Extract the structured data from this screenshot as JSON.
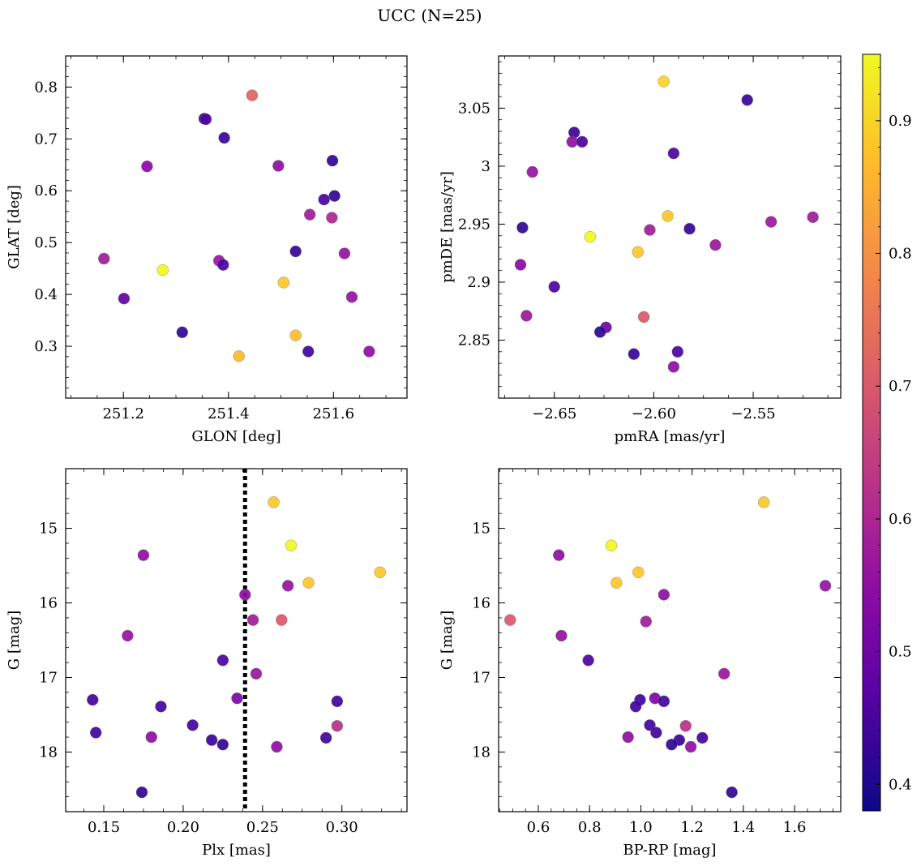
{
  "title": "UCC (N=25)",
  "colorbar": {
    "cmap": "plasma",
    "vmin": 0.38,
    "vmax": 0.95,
    "ticks": [
      0.4,
      0.5,
      0.6,
      0.7,
      0.8,
      0.9
    ]
  },
  "chart_data": [
    {
      "type": "scatter",
      "id": "glon-glat",
      "xlabel": "GLON [deg]",
      "ylabel": "GLAT [deg]",
      "xlim": [
        251.09,
        251.74
      ],
      "ylim": [
        0.2,
        0.86
      ],
      "xticks": [
        251.2,
        251.4,
        251.6
      ],
      "yticks": [
        0.3,
        0.4,
        0.5,
        0.6,
        0.7,
        0.8
      ],
      "points": [
        {
          "x": 251.445,
          "y": 0.784,
          "c": 0.72
        },
        {
          "x": 251.354,
          "y": 0.739,
          "c": 0.41
        },
        {
          "x": 251.357,
          "y": 0.738,
          "c": 0.46
        },
        {
          "x": 251.392,
          "y": 0.702,
          "c": 0.43
        },
        {
          "x": 251.598,
          "y": 0.658,
          "c": 0.42
        },
        {
          "x": 251.245,
          "y": 0.647,
          "c": 0.54
        },
        {
          "x": 251.495,
          "y": 0.648,
          "c": 0.55
        },
        {
          "x": 251.602,
          "y": 0.59,
          "c": 0.42
        },
        {
          "x": 251.582,
          "y": 0.583,
          "c": 0.45
        },
        {
          "x": 251.555,
          "y": 0.554,
          "c": 0.58
        },
        {
          "x": 251.597,
          "y": 0.548,
          "c": 0.6
        },
        {
          "x": 251.528,
          "y": 0.483,
          "c": 0.43
        },
        {
          "x": 251.621,
          "y": 0.479,
          "c": 0.56
        },
        {
          "x": 251.163,
          "y": 0.469,
          "c": 0.58
        },
        {
          "x": 251.382,
          "y": 0.465,
          "c": 0.57
        },
        {
          "x": 251.39,
          "y": 0.457,
          "c": 0.45
        },
        {
          "x": 251.275,
          "y": 0.447,
          "c": 0.95
        },
        {
          "x": 251.505,
          "y": 0.423,
          "c": 0.88
        },
        {
          "x": 251.635,
          "y": 0.395,
          "c": 0.56
        },
        {
          "x": 251.201,
          "y": 0.392,
          "c": 0.48
        },
        {
          "x": 251.312,
          "y": 0.327,
          "c": 0.42
        },
        {
          "x": 251.528,
          "y": 0.321,
          "c": 0.87
        },
        {
          "x": 251.552,
          "y": 0.29,
          "c": 0.44
        },
        {
          "x": 251.668,
          "y": 0.29,
          "c": 0.55
        },
        {
          "x": 251.42,
          "y": 0.281,
          "c": 0.86
        }
      ]
    },
    {
      "type": "scatter",
      "id": "pmra-pmde",
      "xlabel": "pmRA [mas/yr]",
      "ylabel": "pmDE [mas/yr]",
      "xlim": [
        -2.678,
        -2.506
      ],
      "ylim": [
        2.8,
        3.095
      ],
      "xticks": [
        -2.65,
        -2.6,
        -2.55
      ],
      "xtick_labels": [
        "−2.65",
        "−2.60",
        "−2.55"
      ],
      "yticks": [
        2.85,
        2.9,
        2.95,
        3.0,
        3.05
      ],
      "points": [
        {
          "x": -2.595,
          "y": 3.073,
          "c": 0.9
        },
        {
          "x": -2.553,
          "y": 3.057,
          "c": 0.43
        },
        {
          "x": -2.64,
          "y": 3.029,
          "c": 0.43
        },
        {
          "x": -2.641,
          "y": 3.021,
          "c": 0.55
        },
        {
          "x": -2.636,
          "y": 3.021,
          "c": 0.45
        },
        {
          "x": -2.59,
          "y": 3.011,
          "c": 0.45
        },
        {
          "x": -2.661,
          "y": 2.995,
          "c": 0.56
        },
        {
          "x": -2.593,
          "y": 2.957,
          "c": 0.88
        },
        {
          "x": -2.52,
          "y": 2.956,
          "c": 0.58
        },
        {
          "x": -2.541,
          "y": 2.952,
          "c": 0.57
        },
        {
          "x": -2.666,
          "y": 2.947,
          "c": 0.42
        },
        {
          "x": -2.582,
          "y": 2.946,
          "c": 0.42
        },
        {
          "x": -2.602,
          "y": 2.945,
          "c": 0.58
        },
        {
          "x": -2.632,
          "y": 2.939,
          "c": 0.95
        },
        {
          "x": -2.569,
          "y": 2.932,
          "c": 0.57
        },
        {
          "x": -2.608,
          "y": 2.926,
          "c": 0.88
        },
        {
          "x": -2.667,
          "y": 2.915,
          "c": 0.54
        },
        {
          "x": -2.65,
          "y": 2.896,
          "c": 0.45
        },
        {
          "x": -2.664,
          "y": 2.871,
          "c": 0.57
        },
        {
          "x": -2.605,
          "y": 2.87,
          "c": 0.7
        },
        {
          "x": -2.624,
          "y": 2.861,
          "c": 0.5
        },
        {
          "x": -2.627,
          "y": 2.857,
          "c": 0.42
        },
        {
          "x": -2.588,
          "y": 2.84,
          "c": 0.45
        },
        {
          "x": -2.61,
          "y": 2.838,
          "c": 0.43
        },
        {
          "x": -2.59,
          "y": 2.827,
          "c": 0.55
        }
      ]
    },
    {
      "type": "scatter",
      "id": "plx-g",
      "xlabel": "Plx [mas]",
      "ylabel": "G [mag]",
      "xlim": [
        0.126,
        0.341
      ],
      "ylim": [
        18.8,
        14.2
      ],
      "y_inverted": true,
      "xticks": [
        0.15,
        0.2,
        0.25,
        0.3
      ],
      "xtick_labels": [
        "0.15",
        "0.20",
        "0.25",
        "0.30"
      ],
      "yticks": [
        15,
        16,
        17,
        18
      ],
      "vline": {
        "x": 0.239,
        "style": "dotted"
      },
      "points": [
        {
          "x": 0.257,
          "y": 14.65,
          "c": 0.88
        },
        {
          "x": 0.268,
          "y": 15.23,
          "c": 0.95
        },
        {
          "x": 0.175,
          "y": 15.36,
          "c": 0.55
        },
        {
          "x": 0.324,
          "y": 15.59,
          "c": 0.88
        },
        {
          "x": 0.279,
          "y": 15.73,
          "c": 0.88
        },
        {
          "x": 0.266,
          "y": 15.77,
          "c": 0.56
        },
        {
          "x": 0.239,
          "y": 15.89,
          "c": 0.55
        },
        {
          "x": 0.244,
          "y": 16.23,
          "c": 0.58
        },
        {
          "x": 0.262,
          "y": 16.23,
          "c": 0.7
        },
        {
          "x": 0.165,
          "y": 16.44,
          "c": 0.56
        },
        {
          "x": 0.225,
          "y": 16.77,
          "c": 0.45
        },
        {
          "x": 0.246,
          "y": 16.95,
          "c": 0.57
        },
        {
          "x": 0.234,
          "y": 17.28,
          "c": 0.52
        },
        {
          "x": 0.143,
          "y": 17.3,
          "c": 0.44
        },
        {
          "x": 0.297,
          "y": 17.32,
          "c": 0.44
        },
        {
          "x": 0.186,
          "y": 17.39,
          "c": 0.44
        },
        {
          "x": 0.206,
          "y": 17.64,
          "c": 0.44
        },
        {
          "x": 0.297,
          "y": 17.65,
          "c": 0.62
        },
        {
          "x": 0.145,
          "y": 17.74,
          "c": 0.44
        },
        {
          "x": 0.18,
          "y": 17.8,
          "c": 0.55
        },
        {
          "x": 0.29,
          "y": 17.81,
          "c": 0.44
        },
        {
          "x": 0.218,
          "y": 17.84,
          "c": 0.43
        },
        {
          "x": 0.225,
          "y": 17.9,
          "c": 0.42
        },
        {
          "x": 0.259,
          "y": 17.93,
          "c": 0.55
        },
        {
          "x": 0.174,
          "y": 18.54,
          "c": 0.42
        }
      ]
    },
    {
      "type": "scatter",
      "id": "bprp-g",
      "xlabel": "BP-RP [mag]",
      "ylabel": "G [mag]",
      "xlim": [
        0.445,
        1.78
      ],
      "ylim": [
        18.8,
        14.2
      ],
      "y_inverted": true,
      "xticks": [
        0.6,
        0.8,
        1.0,
        1.2,
        1.4,
        1.6
      ],
      "xtick_labels": [
        "0.6",
        "0.8",
        "1.0",
        "1.2",
        "1.4",
        "1.6"
      ],
      "yticks": [
        15,
        16,
        17,
        18
      ],
      "points": [
        {
          "x": 1.48,
          "y": 14.65,
          "c": 0.88
        },
        {
          "x": 0.885,
          "y": 15.23,
          "c": 0.95
        },
        {
          "x": 0.68,
          "y": 15.36,
          "c": 0.55
        },
        {
          "x": 0.99,
          "y": 15.59,
          "c": 0.88
        },
        {
          "x": 0.905,
          "y": 15.73,
          "c": 0.88
        },
        {
          "x": 1.72,
          "y": 15.77,
          "c": 0.56
        },
        {
          "x": 1.09,
          "y": 15.89,
          "c": 0.55
        },
        {
          "x": 0.49,
          "y": 16.23,
          "c": 0.7
        },
        {
          "x": 1.02,
          "y": 16.25,
          "c": 0.58
        },
        {
          "x": 0.69,
          "y": 16.44,
          "c": 0.56
        },
        {
          "x": 0.795,
          "y": 16.77,
          "c": 0.45
        },
        {
          "x": 1.325,
          "y": 16.95,
          "c": 0.57
        },
        {
          "x": 1.055,
          "y": 17.28,
          "c": 0.52
        },
        {
          "x": 0.997,
          "y": 17.3,
          "c": 0.44
        },
        {
          "x": 1.09,
          "y": 17.32,
          "c": 0.44
        },
        {
          "x": 0.98,
          "y": 17.39,
          "c": 0.44
        },
        {
          "x": 1.035,
          "y": 17.64,
          "c": 0.44
        },
        {
          "x": 1.175,
          "y": 17.65,
          "c": 0.62
        },
        {
          "x": 1.06,
          "y": 17.74,
          "c": 0.44
        },
        {
          "x": 0.95,
          "y": 17.8,
          "c": 0.55
        },
        {
          "x": 1.24,
          "y": 17.81,
          "c": 0.44
        },
        {
          "x": 1.15,
          "y": 17.84,
          "c": 0.43
        },
        {
          "x": 1.12,
          "y": 17.9,
          "c": 0.42
        },
        {
          "x": 1.195,
          "y": 17.93,
          "c": 0.55
        },
        {
          "x": 1.355,
          "y": 18.54,
          "c": 0.42
        }
      ]
    }
  ]
}
